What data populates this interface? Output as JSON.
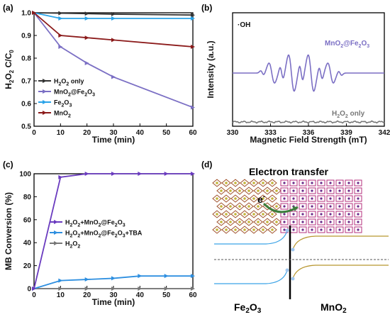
{
  "chart_data": [
    {
      "panel_label": "(a)",
      "type": "line",
      "xlabel": "Time (min)",
      "ylabel": "H2O2 C/C0",
      "xlim": [
        0,
        60
      ],
      "ylim": [
        0.5,
        1.0
      ],
      "xticks": [
        "0",
        "10",
        "20",
        "30",
        "40",
        "50",
        "60"
      ],
      "yticks": [
        "0.5",
        "0.6",
        "0.7",
        "0.8",
        "0.9",
        "1.0"
      ],
      "x": [
        0,
        10,
        20,
        30,
        60
      ],
      "series": [
        {
          "name": "H2O2 only",
          "legend": [
            "H",
            "2",
            "O",
            "2",
            " only"
          ],
          "color": "#333333",
          "values": [
            1.0,
            0.998,
            0.996,
            0.994,
            0.99
          ]
        },
        {
          "name": "MnO2@Fe2O3",
          "legend": [
            "MnO",
            "2",
            "@Fe",
            "2",
            "O",
            "3"
          ],
          "color": "#7b6fc4",
          "values": [
            1.0,
            0.85,
            0.778,
            0.717,
            0.583
          ]
        },
        {
          "name": "Fe2O3",
          "legend": [
            "Fe",
            "2",
            "O",
            "3"
          ],
          "color": "#2aa3e8",
          "values": [
            1.0,
            0.975,
            0.975,
            0.975,
            0.975
          ]
        },
        {
          "name": "MnO2",
          "legend": [
            "MnO",
            "2"
          ],
          "color": "#8b1a1a",
          "values": [
            1.0,
            0.9,
            0.89,
            0.88,
            0.85
          ]
        }
      ],
      "legend_position": "bottom-left"
    },
    {
      "panel_label": "(b)",
      "type": "line",
      "xlabel": "Magnetic Field Strength (mT)",
      "ylabel": "Intensity (a.u.)",
      "xlim": [
        330,
        342
      ],
      "xticks": [
        "330",
        "333",
        "336",
        "339",
        "342"
      ],
      "annotation": "·OH",
      "series": [
        {
          "name": "MnO2@Fe2O3",
          "label": [
            "MnO",
            "2",
            "@Fe",
            "2",
            "O",
            "3"
          ],
          "color": "#7b6fc4"
        },
        {
          "name": "H2O2 only",
          "label": [
            "H",
            "2",
            "O",
            "2",
            " only"
          ],
          "color": "#777777"
        }
      ]
    },
    {
      "panel_label": "(c)",
      "type": "line",
      "xlabel": "Time (min)",
      "ylabel": "MB Conversion (%)",
      "xlim": [
        0,
        60
      ],
      "ylim": [
        0,
        100
      ],
      "xticks": [
        "0",
        "10",
        "20",
        "30",
        "40",
        "50",
        "60"
      ],
      "yticks": [
        "0",
        "20",
        "40",
        "60",
        "80",
        "100"
      ],
      "x": [
        0,
        10,
        20,
        30,
        40,
        50,
        60
      ],
      "series": [
        {
          "name": "H2O2+MnO2@Fe2O3",
          "legend": [
            "H",
            "2",
            "O",
            "2",
            "+MnO",
            "2",
            "@Fe",
            "2",
            "O",
            "3"
          ],
          "color": "#6a3bbf",
          "values": [
            0,
            97,
            100,
            100,
            100,
            100,
            100
          ]
        },
        {
          "name": "H2O2+MnO2@Fe2O3+TBA",
          "legend": [
            "H",
            "2",
            "O",
            "2",
            "+MnO",
            "2",
            "@Fe",
            "2",
            "O",
            "3",
            "+TBA"
          ],
          "color": "#2e8fe0",
          "values": [
            0,
            7,
            8,
            9,
            11,
            11,
            11
          ]
        },
        {
          "name": "H2O2",
          "legend": [
            "H",
            "2",
            "O",
            "2"
          ],
          "color": "#777777",
          "values": [
            0,
            0,
            0,
            0,
            0,
            0,
            0
          ]
        }
      ],
      "legend_position": "center-right"
    },
    {
      "panel_label": "(d)",
      "type": "diagram",
      "title": "Electron transfer",
      "electron_label": "e",
      "electron_sup": "-",
      "left_label": [
        "Fe",
        "2",
        "O",
        "3"
      ],
      "right_label": [
        "MnO",
        "2"
      ],
      "colors": {
        "fe2o3_band": "#3ba3e6",
        "mno2_band": "#b8962e",
        "fermi": "#555555",
        "junction": "#000000"
      }
    }
  ]
}
